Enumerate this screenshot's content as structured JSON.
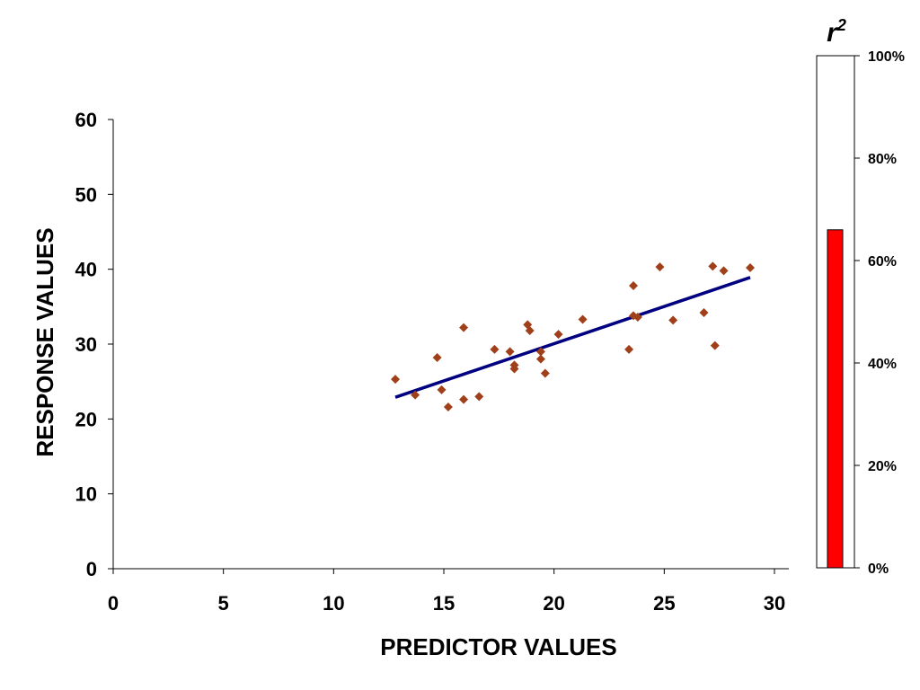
{
  "chart_data": [
    {
      "type": "scatter",
      "title": "",
      "xlabel": "PREDICTOR VALUES",
      "ylabel": "RESPONSE VALUES",
      "xlim": [
        0,
        30
      ],
      "ylim": [
        0,
        60
      ],
      "xticks": [
        "0",
        "5",
        "10",
        "15",
        "20",
        "25",
        "30"
      ],
      "yticks": [
        "0",
        "10",
        "20",
        "30",
        "40",
        "50",
        "60"
      ],
      "grid": false,
      "marker_color": "#A0401A",
      "series": [
        {
          "x": [
            12.8,
            13.7,
            14.7,
            14.9,
            15.2,
            15.9,
            15.9,
            16.6,
            17.3,
            18.0,
            18.2,
            18.2,
            18.8,
            18.9,
            19.4,
            19.4,
            19.6,
            20.2,
            21.3,
            23.4,
            23.6,
            23.6,
            23.8,
            24.8,
            25.4,
            26.8,
            27.2,
            27.3,
            27.7,
            28.9
          ],
          "y": [
            25.3,
            23.2,
            28.2,
            23.9,
            21.6,
            22.6,
            32.2,
            23.0,
            29.3,
            29.0,
            26.7,
            27.2,
            32.6,
            31.8,
            29.0,
            28.0,
            26.1,
            31.3,
            33.3,
            29.3,
            33.8,
            37.8,
            33.6,
            40.3,
            33.2,
            34.2,
            40.4,
            29.8,
            39.8,
            40.2
          ]
        }
      ],
      "trendline": {
        "x": [
          12.8,
          28.9
        ],
        "y": [
          22.9,
          38.9
        ],
        "color": "#000080"
      }
    },
    {
      "type": "bar",
      "title": "r",
      "title_superscript": "2",
      "categories": [
        ""
      ],
      "values": [
        66
      ],
      "ylim": [
        0,
        100
      ],
      "yticks": [
        "0%",
        "20%",
        "40%",
        "60%",
        "80%",
        "100%"
      ],
      "bar_color": "#FF0000"
    }
  ]
}
